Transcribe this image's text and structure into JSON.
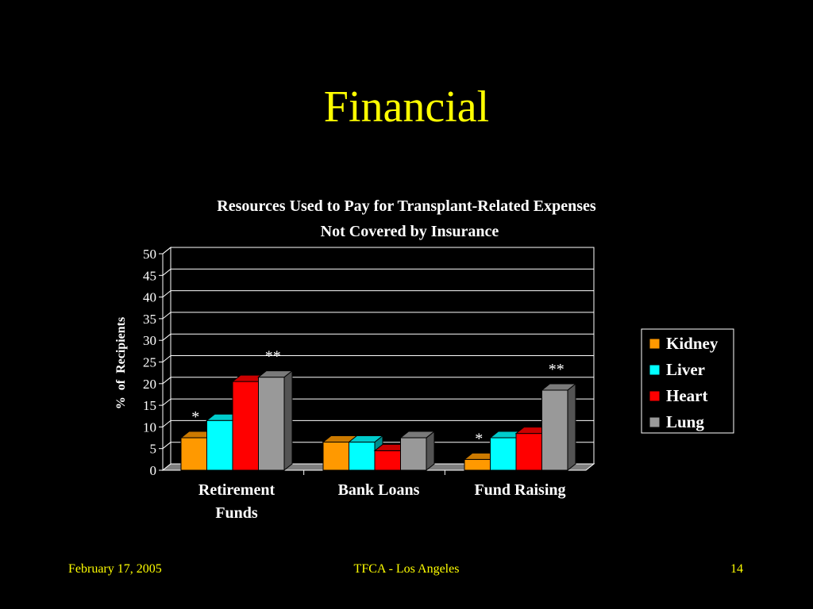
{
  "slide": {
    "title": "Financial"
  },
  "footer": {
    "date": "February 17, 2005",
    "center": "TFCA - Los Angeles",
    "page": "14"
  },
  "chart_data": {
    "type": "bar",
    "title": "Resources Used to Pay for Transplant-Related Expenses",
    "subtitle": "Not Covered by Insurance",
    "xlabel": "",
    "ylabel": "%  of  Recipients",
    "categories": [
      [
        "Retirement",
        "Funds"
      ],
      [
        "Bank Loans"
      ],
      [
        "Fund Raising"
      ]
    ],
    "ylim": [
      0,
      50
    ],
    "yticks": [
      "0",
      "5",
      "10",
      "15",
      "20",
      "25",
      "30",
      "35",
      "40",
      "45",
      "50"
    ],
    "grid": true,
    "legend_position": "right",
    "series": [
      {
        "name": "Kidney",
        "color": "#ff9900",
        "values": [
          7.5,
          6.5,
          2.5
        ]
      },
      {
        "name": "Liver",
        "color": "#00ffff",
        "values": [
          11.5,
          6.5,
          7.5
        ]
      },
      {
        "name": "Heart",
        "color": "#ff0000",
        "values": [
          20.5,
          4.5,
          8.5
        ]
      },
      {
        "name": "Lung",
        "color": "#999999",
        "values": [
          21.5,
          7.5,
          18.5
        ]
      }
    ],
    "annotations": [
      {
        "category": 0,
        "series": 0,
        "text": "*"
      },
      {
        "category": 0,
        "series": 3,
        "text": "**"
      },
      {
        "category": 2,
        "series": 0,
        "text": "*"
      },
      {
        "category": 2,
        "series": 3,
        "text": "**"
      }
    ]
  }
}
